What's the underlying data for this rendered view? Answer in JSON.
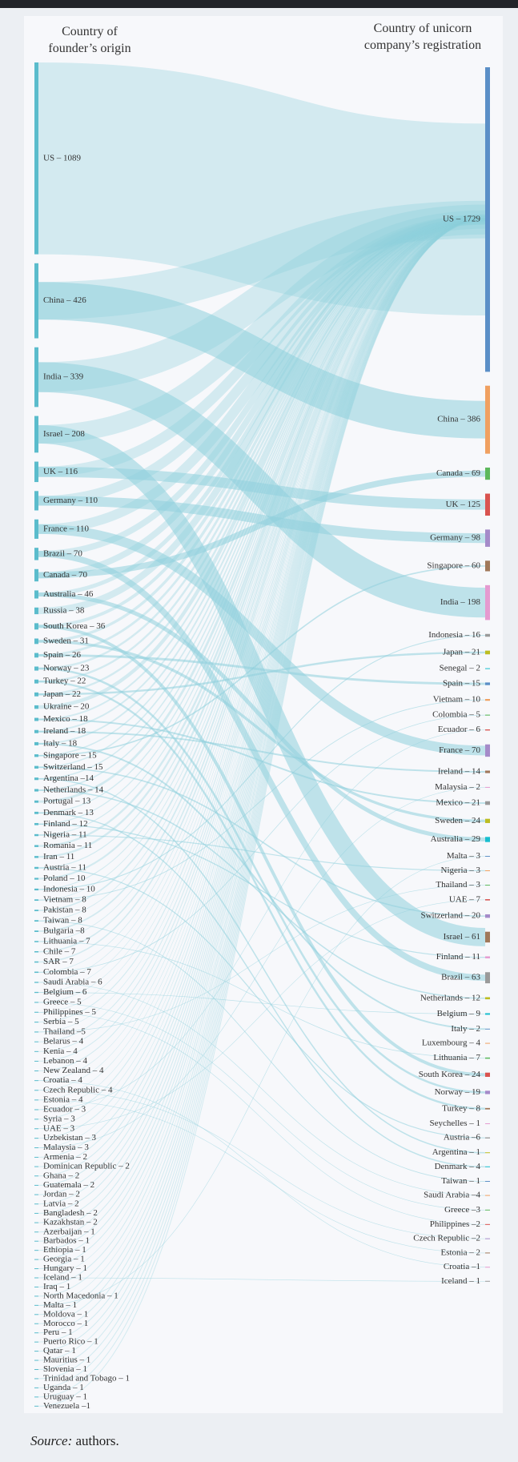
{
  "chart_data": {
    "type": "sankey",
    "left_title": [
      "Country of",
      "founder’s origin"
    ],
    "right_title": [
      "Country of unicorn",
      "company’s registration"
    ],
    "source_color": "#5bbccc",
    "flow_color": "#8fd0dc",
    "palette": [
      "#5b8fc7",
      "#f0a060",
      "#5cb85c",
      "#d9534f",
      "#a58bc9",
      "#a0785a",
      "#e59ad0",
      "#9a9a9a",
      "#bcbd22",
      "#17becf"
    ],
    "sources": {
      "labels": [
        "US – 1089",
        "China – 426",
        "India – 339",
        "Israel – 208",
        "UK – 116",
        "Germany – 110",
        "France – 110",
        "Brazil – 70",
        "Canada – 70",
        "Australia – 46",
        "Russia – 38",
        "South Korea – 36",
        "Sweden – 31",
        "Spain – 26",
        "Norway – 23",
        "Turkey – 22",
        "Japan – 22",
        "Ukraine – 20",
        "Mexico – 18",
        "Ireland – 18",
        "Italy – 18",
        "Singapore – 15",
        "Switzerland – 15",
        "Argentina –14",
        "Netherlands – 14",
        "Portugal – 13",
        "Denmark – 13",
        "Finland – 12",
        "Nigeria – 11",
        "Romania – 11",
        "Iran – 11",
        "Austria – 11",
        "Poland – 10",
        "Indonesia – 10",
        "Vietnam – 8",
        "Pakistan – 8",
        "Taiwan – 8",
        "Bulgaria –8",
        "Lithuania – 7",
        "Chile – 7",
        "SAR – 7",
        "Colombia – 7",
        "Saudi Arabia – 6",
        "Belgium – 6",
        "Greece – 5",
        "Philippines – 5",
        "Serbia – 5",
        "Thailand –5",
        "Belarus – 4",
        "Kenia – 4",
        "Lebanon – 4",
        "New Zealand – 4",
        "Croatia – 4",
        "Czech Republic  – 4",
        "Estonia – 4",
        "Ecuador – 3",
        "Syria – 3",
        "UAE – 3",
        "Uzbekistan – 3",
        "Malaysia – 3",
        "Armenia – 2",
        "Dominican Republic – 2",
        "Ghana – 2",
        "Guatemala – 2",
        "Jordan – 2",
        "Latvia – 2",
        "Bangladesh – 2",
        "Kazakhstan – 2",
        "Azerbaijan – 1",
        "Barbados – 1",
        "Ethiopia – 1",
        "Georgia – 1",
        "Hungary – 1",
        "Iceland – 1",
        "Iraq – 1",
        "North Macedonia – 1",
        "Malta – 1",
        "Moldova – 1",
        "Morocco – 1",
        "Peru – 1",
        "Puerto Rico – 1",
        "Qatar – 1",
        "Mauritius – 1",
        "Slovenia – 1",
        "Trinidad and Tobago – 1",
        "Uganda – 1",
        "Uruguay – 1",
        "Venezuela –1"
      ],
      "values": [
        1089,
        426,
        339,
        208,
        116,
        110,
        110,
        70,
        70,
        46,
        38,
        36,
        31,
        26,
        23,
        22,
        22,
        20,
        18,
        18,
        18,
        15,
        15,
        14,
        14,
        13,
        13,
        12,
        11,
        11,
        11,
        11,
        10,
        10,
        8,
        8,
        8,
        8,
        7,
        7,
        7,
        7,
        6,
        6,
        5,
        5,
        5,
        5,
        4,
        4,
        4,
        4,
        4,
        4,
        4,
        3,
        3,
        3,
        3,
        3,
        2,
        2,
        2,
        2,
        2,
        2,
        2,
        2,
        1,
        1,
        1,
        1,
        1,
        1,
        1,
        1,
        1,
        1,
        1,
        1,
        1,
        1,
        1,
        1,
        1,
        1,
        1,
        1
      ]
    },
    "targets": {
      "labels": [
        "US – 1729",
        "China – 386",
        "Canada – 69",
        "UK – 125",
        "Germany  – 98",
        "Singapore – 60",
        "India – 198",
        "Indonesia – 16",
        "Japan – 21",
        "Senegal – 2",
        "Spain – 15",
        "Vietnam – 10",
        "Colombia – 5",
        "Ecuador – 6",
        "France – 70",
        "Ireland – 14",
        "Malaysia – 2",
        "Mexico – 21",
        "Sweden – 24",
        "Australia – 29",
        "Malta – 3",
        "Nigeria – 3",
        "Thailand – 3",
        "UAE – 7",
        "Switzerland – 20",
        "Israel – 61",
        "Finland – 11",
        "Brazil – 63",
        "Netherlands – 12",
        "Belgium – 9",
        "Italy – 2",
        "Luxembourg – 4",
        "Lithuania – 7",
        "South Korea – 24",
        "Norway – 19",
        "Turkey – 8",
        "Seychelles – 1",
        "Austria –6",
        "Argentina – 1",
        "Denmark – 4",
        "Taiwan – 1",
        "Saudi Arabia –4",
        "Greece –3",
        "Philippines –2",
        "Czech Republic –2",
        "Estonia – 2",
        "Croatia –1",
        "Iceland – 1"
      ],
      "values": [
        1729,
        386,
        69,
        125,
        98,
        60,
        198,
        16,
        21,
        2,
        15,
        10,
        5,
        6,
        70,
        14,
        2,
        21,
        24,
        29,
        3,
        3,
        3,
        7,
        20,
        61,
        11,
        63,
        12,
        9,
        2,
        4,
        7,
        24,
        19,
        8,
        1,
        6,
        1,
        4,
        1,
        4,
        3,
        2,
        2,
        2,
        1,
        1
      ]
    },
    "source_label": "Source:",
    "source_text": "authors."
  }
}
